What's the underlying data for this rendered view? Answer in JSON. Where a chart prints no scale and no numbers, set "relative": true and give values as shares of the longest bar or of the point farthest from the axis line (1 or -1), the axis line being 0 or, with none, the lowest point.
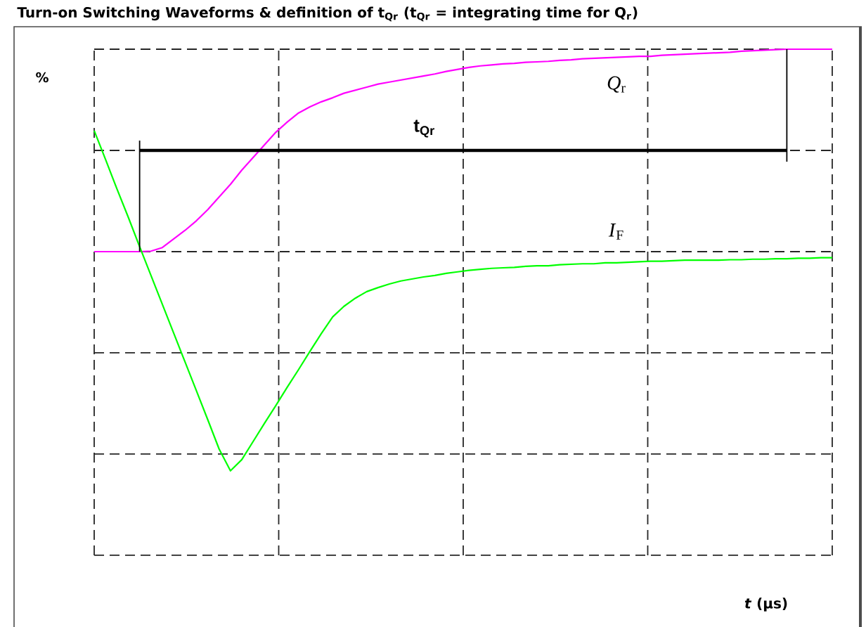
{
  "chart_data": {
    "type": "line",
    "title": "Turn-on Switching Waveforms & definition of t$_{Qr}$ (t$_{Qr}$ = integrating time for Q$_{r}$)",
    "xlabel": "*t* (µs)",
    "ylabel": "%",
    "relative": true,
    "grid": true,
    "categories": [
      null,
      null,
      null,
      null,
      null,
      null,
      null,
      null,
      null,
      null,
      null,
      null,
      null,
      null,
      null,
      null,
      null,
      null,
      null,
      null,
      null,
      null,
      null,
      null,
      null,
      null,
      null,
      null,
      null,
      null,
      null,
      null,
      null,
      null,
      null,
      null,
      null,
      null,
      null,
      null,
      null,
      null,
      null,
      null,
      null,
      null,
      null,
      null,
      null,
      null,
      null,
      null,
      null,
      null,
      null,
      null,
      null,
      null,
      null,
      null,
      null,
      null,
      null,
      null,
      null,
      null
    ],
    "series": [
      {
        "name": "*Q*$_{r}$",
        "color": "#ff00ff",
        "values": [
          0.6,
          0.6,
          0.6,
          0.6,
          0.6,
          0.601,
          0.608,
          0.625,
          0.642,
          0.661,
          0.683,
          0.708,
          0.733,
          0.761,
          0.786,
          0.811,
          0.836,
          0.856,
          0.874,
          0.886,
          0.896,
          0.904,
          0.913,
          0.919,
          0.925,
          0.931,
          0.935,
          0.939,
          0.943,
          0.947,
          0.951,
          0.956,
          0.96,
          0.964,
          0.967,
          0.969,
          0.971,
          0.972,
          0.974,
          0.975,
          0.976,
          0.978,
          0.979,
          0.981,
          0.982,
          0.983,
          0.984,
          0.985,
          0.986,
          0.986,
          0.988,
          0.989,
          0.99,
          0.991,
          0.992,
          0.993,
          0.994,
          0.996,
          0.997,
          0.998,
          0.999,
          1,
          1,
          1,
          1,
          1
        ]
      },
      {
        "name": "*I*$_{F}$",
        "color": "#00ff00",
        "values": [
          0.839,
          0.782,
          0.724,
          0.668,
          0.61,
          0.553,
          0.496,
          0.439,
          0.382,
          0.325,
          0.268,
          0.21,
          0.167,
          0.189,
          0.225,
          0.261,
          0.296,
          0.332,
          0.367,
          0.403,
          0.438,
          0.471,
          0.492,
          0.508,
          0.521,
          0.529,
          0.536,
          0.542,
          0.546,
          0.55,
          0.553,
          0.557,
          0.56,
          0.563,
          0.565,
          0.567,
          0.568,
          0.569,
          0.571,
          0.572,
          0.572,
          0.574,
          0.575,
          0.576,
          0.576,
          0.578,
          0.578,
          0.579,
          0.58,
          0.581,
          0.581,
          0.582,
          0.583,
          0.583,
          0.583,
          0.583,
          0.584,
          0.584,
          0.585,
          0.585,
          0.586,
          0.586,
          0.587,
          0.587,
          0.588,
          0.588
        ]
      }
    ],
    "annotations": [
      "t$_{Qr}$"
    ]
  }
}
